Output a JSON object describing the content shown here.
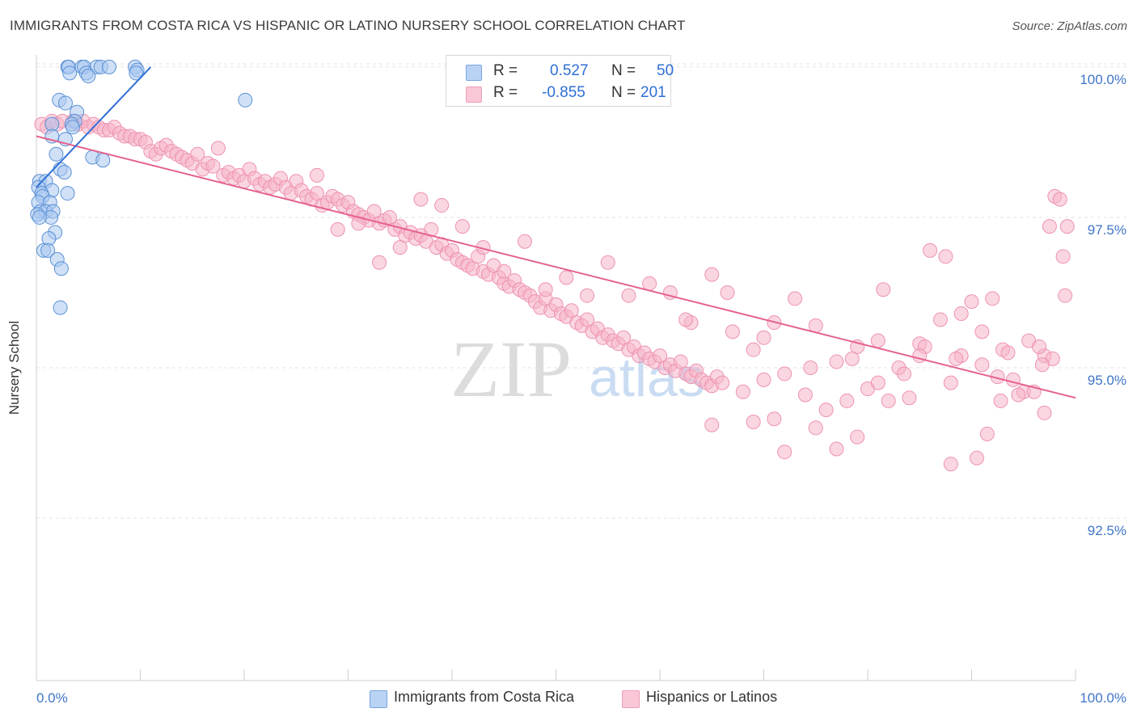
{
  "title": "IMMIGRANTS FROM COSTA RICA VS HISPANIC OR LATINO NURSERY SCHOOL CORRELATION CHART",
  "source": "Source: ZipAtlas.com",
  "watermark": {
    "zip": "ZIP",
    "atlas": "atlas"
  },
  "legend": {
    "rows": [
      {
        "r_label": "R =",
        "r_value": "0.527",
        "n_label": "N =",
        "n_value": "50"
      },
      {
        "r_label": "R =",
        "r_value": "-0.855",
        "n_label": "N =",
        "n_value": "201"
      }
    ]
  },
  "bottom_legend": {
    "series1": "Immigrants from Costa Rica",
    "series2": "Hispanics or Latinos"
  },
  "colors": {
    "blue_fill": "#a9c8f0",
    "blue_stroke": "#5b91d6",
    "blue_line": "#2f6fd6",
    "pink_fill": "#f6b5c9",
    "pink_stroke": "#ee93b0",
    "pink_line": "#e5608e",
    "tick_label": "#3f75c8",
    "grid": "#e3e3e3"
  },
  "chart_data": {
    "type": "scatter",
    "title": "IMMIGRANTS FROM COSTA RICA VS HISPANIC OR LATINO NURSERY SCHOOL CORRELATION CHART",
    "xlabel": "",
    "ylabel": "Nursery School",
    "xlim": [
      0,
      100
    ],
    "ylim": [
      89.8,
      100.2
    ],
    "x_tick_labels": [
      "0.0%",
      "100.0%"
    ],
    "y_ticks": [
      92.5,
      95.0,
      97.5,
      100.0
    ],
    "y_tick_labels": [
      "92.5%",
      "95.0%",
      "97.5%",
      "100.0%"
    ],
    "grid": true,
    "legend_position": "top-center",
    "series": [
      {
        "name": "Immigrants from Costa Rica",
        "color": "blue",
        "r": 0.527,
        "n": 50,
        "trend": {
          "x": [
            0.0,
            11.0
          ],
          "y": [
            98.0,
            100.0
          ]
        },
        "points": [
          [
            3.0,
            100.0
          ],
          [
            3.1,
            100.0
          ],
          [
            4.4,
            100.0
          ],
          [
            4.6,
            100.0
          ],
          [
            5.8,
            100.0
          ],
          [
            6.2,
            100.0
          ],
          [
            7.0,
            100.0
          ],
          [
            9.5,
            100.0
          ],
          [
            9.7,
            99.95
          ],
          [
            3.2,
            99.9
          ],
          [
            4.8,
            99.9
          ],
          [
            9.6,
            99.9
          ],
          [
            5.0,
            99.85
          ],
          [
            20.1,
            99.45
          ],
          [
            2.2,
            99.45
          ],
          [
            2.8,
            99.4
          ],
          [
            3.9,
            99.25
          ],
          [
            3.7,
            99.1
          ],
          [
            1.5,
            99.05
          ],
          [
            3.4,
            99.05
          ],
          [
            3.5,
            99.0
          ],
          [
            1.5,
            98.85
          ],
          [
            2.8,
            98.8
          ],
          [
            1.9,
            98.55
          ],
          [
            5.4,
            98.5
          ],
          [
            6.4,
            98.45
          ],
          [
            2.3,
            98.3
          ],
          [
            2.7,
            98.25
          ],
          [
            0.3,
            98.1
          ],
          [
            0.9,
            98.1
          ],
          [
            0.2,
            98.0
          ],
          [
            1.5,
            97.95
          ],
          [
            0.5,
            97.9
          ],
          [
            0.6,
            97.85
          ],
          [
            3.0,
            97.9
          ],
          [
            0.2,
            97.75
          ],
          [
            1.3,
            97.75
          ],
          [
            0.4,
            97.6
          ],
          [
            0.9,
            97.6
          ],
          [
            1.6,
            97.6
          ],
          [
            0.1,
            97.55
          ],
          [
            1.4,
            97.5
          ],
          [
            0.3,
            97.5
          ],
          [
            1.8,
            97.25
          ],
          [
            1.2,
            97.15
          ],
          [
            0.7,
            96.95
          ],
          [
            1.1,
            96.95
          ],
          [
            2.0,
            96.8
          ],
          [
            2.4,
            96.65
          ],
          [
            2.3,
            96.0
          ]
        ]
      },
      {
        "name": "Hispanics or Latinos",
        "color": "pink",
        "r": -0.855,
        "n": 201,
        "trend": {
          "x": [
            0.0,
            100.0
          ],
          "y": [
            98.85,
            94.5
          ]
        },
        "points": [
          [
            0.5,
            99.05
          ],
          [
            1.0,
            99.0
          ],
          [
            1.5,
            99.1
          ],
          [
            2.0,
            99.05
          ],
          [
            2.5,
            99.1
          ],
          [
            3.5,
            99.1
          ],
          [
            4.0,
            99.05
          ],
          [
            4.5,
            99.1
          ],
          [
            5.0,
            99.0
          ],
          [
            5.5,
            99.05
          ],
          [
            6.0,
            99.0
          ],
          [
            6.5,
            98.95
          ],
          [
            7.0,
            98.95
          ],
          [
            7.5,
            99.0
          ],
          [
            8.0,
            98.9
          ],
          [
            8.5,
            98.85
          ],
          [
            9.0,
            98.85
          ],
          [
            9.5,
            98.8
          ],
          [
            10.0,
            98.8
          ],
          [
            10.5,
            98.75
          ],
          [
            11.0,
            98.6
          ],
          [
            11.5,
            98.55
          ],
          [
            12.0,
            98.65
          ],
          [
            12.5,
            98.7
          ],
          [
            13.0,
            98.6
          ],
          [
            13.5,
            98.55
          ],
          [
            14.0,
            98.5
          ],
          [
            14.5,
            98.45
          ],
          [
            15.0,
            98.4
          ],
          [
            15.5,
            98.55
          ],
          [
            16.0,
            98.3
          ],
          [
            16.5,
            98.4
          ],
          [
            17.0,
            98.35
          ],
          [
            17.5,
            98.65
          ],
          [
            18.0,
            98.2
          ],
          [
            18.5,
            98.25
          ],
          [
            19.0,
            98.15
          ],
          [
            19.5,
            98.2
          ],
          [
            20.0,
            98.1
          ],
          [
            20.5,
            98.3
          ],
          [
            21.0,
            98.15
          ],
          [
            21.5,
            98.05
          ],
          [
            22.0,
            98.1
          ],
          [
            22.5,
            98.0
          ],
          [
            23.0,
            98.05
          ],
          [
            23.5,
            98.15
          ],
          [
            24.0,
            98.0
          ],
          [
            24.5,
            97.9
          ],
          [
            25.0,
            98.1
          ],
          [
            25.5,
            97.95
          ],
          [
            26.0,
            97.85
          ],
          [
            26.5,
            97.8
          ],
          [
            27.0,
            97.9
          ],
          [
            27.5,
            97.7
          ],
          [
            28.0,
            97.75
          ],
          [
            28.5,
            97.85
          ],
          [
            29.0,
            97.8
          ],
          [
            29.5,
            97.7
          ],
          [
            30.0,
            97.75
          ],
          [
            30.5,
            97.6
          ],
          [
            31.0,
            97.55
          ],
          [
            31.5,
            97.5
          ],
          [
            32.0,
            97.45
          ],
          [
            32.5,
            97.6
          ],
          [
            33.0,
            97.4
          ],
          [
            33.5,
            97.45
          ],
          [
            34.0,
            97.5
          ],
          [
            34.5,
            97.3
          ],
          [
            35.0,
            97.35
          ],
          [
            35.5,
            97.2
          ],
          [
            36.0,
            97.25
          ],
          [
            36.5,
            97.15
          ],
          [
            37.0,
            97.2
          ],
          [
            37.5,
            97.1
          ],
          [
            38.0,
            97.3
          ],
          [
            38.5,
            97.0
          ],
          [
            39.0,
            97.05
          ],
          [
            39.5,
            96.9
          ],
          [
            40.0,
            96.95
          ],
          [
            40.5,
            96.8
          ],
          [
            41.0,
            96.75
          ],
          [
            41.5,
            96.7
          ],
          [
            42.0,
            96.65
          ],
          [
            42.5,
            96.85
          ],
          [
            43.0,
            96.6
          ],
          [
            43.5,
            96.55
          ],
          [
            44.0,
            96.7
          ],
          [
            44.5,
            96.5
          ],
          [
            45.0,
            96.4
          ],
          [
            45.5,
            96.35
          ],
          [
            46.0,
            96.45
          ],
          [
            46.5,
            96.3
          ],
          [
            47.0,
            96.25
          ],
          [
            47.5,
            96.2
          ],
          [
            48.0,
            96.1
          ],
          [
            48.5,
            96.0
          ],
          [
            49.0,
            96.15
          ],
          [
            49.5,
            95.95
          ],
          [
            50.0,
            96.05
          ],
          [
            50.5,
            95.9
          ],
          [
            51.0,
            95.85
          ],
          [
            51.5,
            95.95
          ],
          [
            52.0,
            95.75
          ],
          [
            52.5,
            95.7
          ],
          [
            53.0,
            95.8
          ],
          [
            53.5,
            95.6
          ],
          [
            54.0,
            95.65
          ],
          [
            54.5,
            95.5
          ],
          [
            55.0,
            95.55
          ],
          [
            55.5,
            95.45
          ],
          [
            56.0,
            95.4
          ],
          [
            56.5,
            95.5
          ],
          [
            57.0,
            95.3
          ],
          [
            57.5,
            95.35
          ],
          [
            58.0,
            95.2
          ],
          [
            58.5,
            95.25
          ],
          [
            59.0,
            95.15
          ],
          [
            59.5,
            95.1
          ],
          [
            60.0,
            95.2
          ],
          [
            60.5,
            95.0
          ],
          [
            61.0,
            95.05
          ],
          [
            61.5,
            94.95
          ],
          [
            62.0,
            95.1
          ],
          [
            62.5,
            94.9
          ],
          [
            63.0,
            94.85
          ],
          [
            63.5,
            94.95
          ],
          [
            64.0,
            94.8
          ],
          [
            64.5,
            94.75
          ],
          [
            65.0,
            94.7
          ],
          [
            65.5,
            94.85
          ],
          [
            27.0,
            98.2
          ],
          [
            29.0,
            97.3
          ],
          [
            31.0,
            97.4
          ],
          [
            33.0,
            96.75
          ],
          [
            35.0,
            97.0
          ],
          [
            37.0,
            97.8
          ],
          [
            39.0,
            97.7
          ],
          [
            41.0,
            97.35
          ],
          [
            43.0,
            97.0
          ],
          [
            45.0,
            96.6
          ],
          [
            47.0,
            97.1
          ],
          [
            49.0,
            96.3
          ],
          [
            51.0,
            96.5
          ],
          [
            53.0,
            96.2
          ],
          [
            55.0,
            96.75
          ],
          [
            57.0,
            96.2
          ],
          [
            59.0,
            96.4
          ],
          [
            61.0,
            96.25
          ],
          [
            63.0,
            95.75
          ],
          [
            65.0,
            96.55
          ],
          [
            67.0,
            95.6
          ],
          [
            69.0,
            95.3
          ],
          [
            71.0,
            95.75
          ],
          [
            73.0,
            96.15
          ],
          [
            75.0,
            95.7
          ],
          [
            77.0,
            95.1
          ],
          [
            79.0,
            95.35
          ],
          [
            81.0,
            95.45
          ],
          [
            83.0,
            95.0
          ],
          [
            85.0,
            95.4
          ],
          [
            87.0,
            95.8
          ],
          [
            89.0,
            95.2
          ],
          [
            91.0,
            95.6
          ],
          [
            93.0,
            95.3
          ],
          [
            95.0,
            94.6
          ],
          [
            97.0,
            95.2
          ],
          [
            99.0,
            96.2
          ],
          [
            98.0,
            97.85
          ],
          [
            98.5,
            97.8
          ],
          [
            99.2,
            97.35
          ],
          [
            97.5,
            97.35
          ],
          [
            98.8,
            96.85
          ],
          [
            86.0,
            96.95
          ],
          [
            87.5,
            96.85
          ],
          [
            90.0,
            96.1
          ],
          [
            92.0,
            96.15
          ],
          [
            94.0,
            94.8
          ],
          [
            96.0,
            94.6
          ],
          [
            66.0,
            94.75
          ],
          [
            68.0,
            94.6
          ],
          [
            70.0,
            94.8
          ],
          [
            72.0,
            94.9
          ],
          [
            74.0,
            94.55
          ],
          [
            76.0,
            94.3
          ],
          [
            78.0,
            94.45
          ],
          [
            80.0,
            94.65
          ],
          [
            82.0,
            94.45
          ],
          [
            84.0,
            94.5
          ],
          [
            88.0,
            94.75
          ],
          [
            92.5,
            94.85
          ],
          [
            65.0,
            94.05
          ],
          [
            69.0,
            94.1
          ],
          [
            71.0,
            94.15
          ],
          [
            75.0,
            94.0
          ],
          [
            77.0,
            93.65
          ],
          [
            79.0,
            93.85
          ],
          [
            88.0,
            93.4
          ],
          [
            90.5,
            93.5
          ],
          [
            91.5,
            93.9
          ],
          [
            97.0,
            94.25
          ],
          [
            72.0,
            93.6
          ],
          [
            81.0,
            94.75
          ],
          [
            83.5,
            94.9
          ],
          [
            85.5,
            95.35
          ],
          [
            88.5,
            95.15
          ],
          [
            91.0,
            95.05
          ],
          [
            93.5,
            95.25
          ],
          [
            95.5,
            95.45
          ],
          [
            96.5,
            95.35
          ],
          [
            94.5,
            94.55
          ],
          [
            92.8,
            94.45
          ],
          [
            97.8,
            95.15
          ],
          [
            96.8,
            95.05
          ],
          [
            81.5,
            96.3
          ],
          [
            85.0,
            95.2
          ],
          [
            89.0,
            95.9
          ],
          [
            70.0,
            95.5
          ],
          [
            74.5,
            95.0
          ],
          [
            78.5,
            95.15
          ],
          [
            66.5,
            96.25
          ],
          [
            62.5,
            95.8
          ]
        ]
      }
    ]
  }
}
